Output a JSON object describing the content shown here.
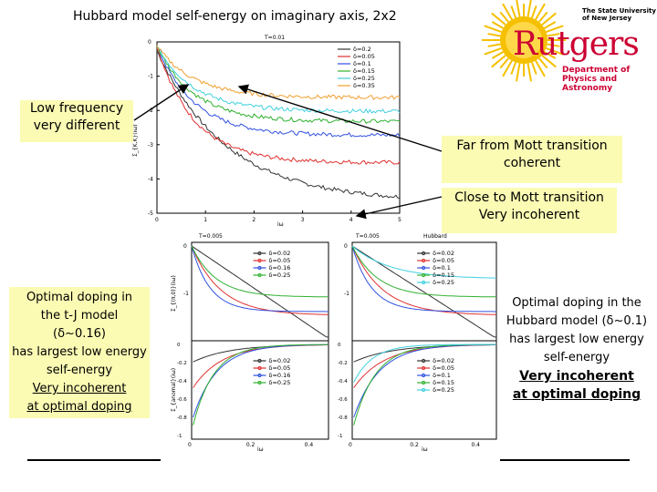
{
  "slide": {
    "title": "Hubbard model self-energy on imaginary axis, 2x2",
    "notes": {
      "low_freq": [
        "Low frequency",
        "very different"
      ],
      "far_mott": [
        "Far from Mott transition",
        "coherent"
      ],
      "close_mott": [
        "Close to Mott transition",
        "Very incoherent"
      ],
      "tj_model": [
        "Optimal doping in",
        "the t-J model",
        "(δ~0.16)",
        "has largest low energy",
        "self-energy",
        "Very incoherent",
        "at optimal doping"
      ],
      "hubbard_model": [
        "Optimal doping in the",
        "Hubbard model (δ~0.1)",
        "has largest low energy",
        "self-energy",
        "Very incoherent",
        "at optimal doping"
      ]
    }
  },
  "logo": {
    "university": [
      "The State University",
      "of New Jersey"
    ],
    "wordmark": "Rutgers",
    "department": [
      "Department of",
      "Physics and Astronomy"
    ],
    "color": "#cc0033",
    "sun_color": "#f5c000"
  },
  "top_plot": {
    "temp_label": "T=0.01",
    "ylabel": "Σ_{K,K}(iω)",
    "xlabel": "iω",
    "xticks": [
      "0",
      "1",
      "2",
      "3",
      "4",
      "5"
    ],
    "yticks": [
      "0",
      "-1",
      "-2",
      "-3",
      "-4",
      "-5"
    ],
    "legend": [
      "δ=0.2",
      "δ=0.05",
      "δ=0.1",
      "δ=0.15",
      "δ=0.25",
      "δ=0.35"
    ],
    "colors": [
      "#333333",
      "#e03030",
      "#3050e0",
      "#30b030",
      "#40d0e0",
      "#f0a030"
    ]
  },
  "bottom_plots": {
    "left_header": "T=0.005",
    "right_header": "T=0.005",
    "model_label": "Hubbard",
    "ylabel_top": "Σ_{(π,0)}(iω)",
    "ylabel_bottom": "Σ_{anomal}(iω)",
    "xlabel": "iω",
    "xticks": [
      "0",
      "0.2",
      "0.4"
    ],
    "left_top_yticks": [
      "0",
      "-1"
    ],
    "right_top_yticks": [
      "0",
      "-1"
    ],
    "bottom_yticks": [
      "0",
      "-0.2",
      "-0.4",
      "-0.6",
      "-0.8",
      "-1"
    ],
    "left_legend": [
      "δ=0.02",
      "δ=0.05",
      "δ=0.16",
      "δ=0.25"
    ],
    "right_legend": [
      "δ=0.02",
      "δ=0.05",
      "δ=0.1",
      "δ=0.15",
      "δ=0.25"
    ],
    "left_colors": [
      "#333333",
      "#e03030",
      "#3050e0",
      "#30b030"
    ],
    "right_colors": [
      "#333333",
      "#e03030",
      "#3050e0",
      "#30b030",
      "#40d0e0"
    ]
  }
}
